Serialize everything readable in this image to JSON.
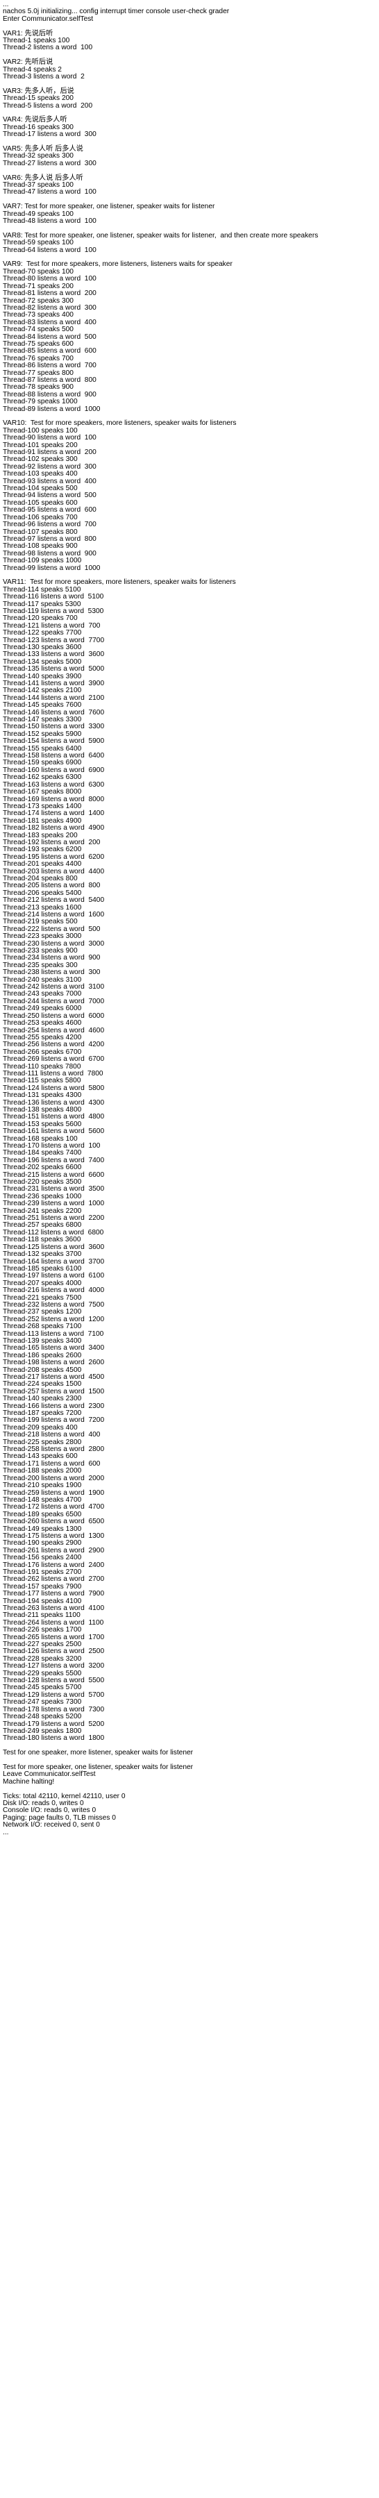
{
  "console": {
    "lines": [
      "...",
      "nachos 5.0j initializing... config interrupt timer console user-check grader",
      "Enter Communicator.selfTest",
      "",
      "VAR1: 先说后听",
      "Thread-1 speaks 100",
      "Thread-2 listens a word  100",
      "",
      "VAR2: 先听后说",
      "Thread-4 speaks 2",
      "Thread-3 listens a word  2",
      "",
      "VAR3: 先多人听，后说",
      "Thread-15 speaks 200",
      "Thread-5 listens a word  200",
      "",
      "VAR4: 先说后多人听",
      "Thread-16 speaks 300",
      "Thread-17 listens a word  300",
      "",
      "VAR5: 先多人听 后多人说",
      "Thread-32 speaks 300",
      "Thread-27 listens a word  300",
      "",
      "VAR6: 先多人说 后多人听",
      "Thread-37 speaks 100",
      "Thread-47 listens a word  100",
      "",
      "VAR7: Test for more speaker, one listener, speaker waits for listener",
      "Thread-49 speaks 100",
      "Thread-48 listens a word  100",
      "",
      "VAR8: Test for more speaker, one listener, speaker waits for listener,  and then create more speakers",
      "Thread-59 speaks 100",
      "Thread-64 listens a word  100",
      "",
      "VAR9:  Test for more speakers, more listeners, listeners waits for speaker",
      "Thread-70 speaks 100",
      "Thread-80 listens a word  100",
      "Thread-71 speaks 200",
      "Thread-81 listens a word  200",
      "Thread-72 speaks 300",
      "Thread-82 listens a word  300",
      "Thread-73 speaks 400",
      "Thread-83 listens a word  400",
      "Thread-74 speaks 500",
      "Thread-84 listens a word  500",
      "Thread-75 speaks 600",
      "Thread-85 listens a word  600",
      "Thread-76 speaks 700",
      "Thread-86 listens a word  700",
      "Thread-77 speaks 800",
      "Thread-87 listens a word  800",
      "Thread-78 speaks 900",
      "Thread-88 listens a word  900",
      "Thread-79 speaks 1000",
      "Thread-89 listens a word  1000",
      "",
      "VAR10:  Test for more speakers, more listeners, speaker waits for listeners",
      "Thread-100 speaks 100",
      "Thread-90 listens a word  100",
      "Thread-101 speaks 200",
      "Thread-91 listens a word  200",
      "Thread-102 speaks 300",
      "Thread-92 listens a word  300",
      "Thread-103 speaks 400",
      "Thread-93 listens a word  400",
      "Thread-104 speaks 500",
      "Thread-94 listens a word  500",
      "Thread-105 speaks 600",
      "Thread-95 listens a word  600",
      "Thread-106 speaks 700",
      "Thread-96 listens a word  700",
      "Thread-107 speaks 800",
      "Thread-97 listens a word  800",
      "Thread-108 speaks 900",
      "Thread-98 listens a word  900",
      "Thread-109 speaks 1000",
      "Thread-99 listens a word  1000",
      "",
      "VAR11:  Test for more speakers, more listeners, speaker waits for listeners",
      "Thread-114 speaks 5100",
      "Thread-116 listens a word  5100",
      "Thread-117 speaks 5300",
      "Thread-119 listens a word  5300",
      "Thread-120 speaks 700",
      "Thread-121 listens a word  700",
      "Thread-122 speaks 7700",
      "Thread-123 listens a word  7700",
      "Thread-130 speaks 3600",
      "Thread-133 listens a word  3600",
      "Thread-134 speaks 5000",
      "Thread-135 listens a word  5000",
      "Thread-140 speaks 3900",
      "Thread-141 listens a word  3900",
      "Thread-142 speaks 2100",
      "Thread-144 listens a word  2100",
      "Thread-145 speaks 7600",
      "Thread-146 listens a word  7600",
      "Thread-147 speaks 3300",
      "Thread-150 listens a word  3300",
      "Thread-152 speaks 5900",
      "Thread-154 listens a word  5900",
      "Thread-155 speaks 6400",
      "Thread-158 listens a word  6400",
      "Thread-159 speaks 6900",
      "Thread-160 listens a word  6900",
      "Thread-162 speaks 6300",
      "Thread-163 listens a word  6300",
      "Thread-167 speaks 8000",
      "Thread-169 listens a word  8000",
      "Thread-173 speaks 1400",
      "Thread-174 listens a word  1400",
      "Thread-181 speaks 4900",
      "Thread-182 listens a word  4900",
      "Thread-183 speaks 200",
      "Thread-192 listens a word  200",
      "Thread-193 speaks 6200",
      "Thread-195 listens a word  6200",
      "Thread-201 speaks 4400",
      "Thread-203 listens a word  4400",
      "Thread-204 speaks 800",
      "Thread-205 listens a word  800",
      "Thread-206 speaks 5400",
      "Thread-212 listens a word  5400",
      "Thread-213 speaks 1600",
      "Thread-214 listens a word  1600",
      "Thread-219 speaks 500",
      "Thread-222 listens a word  500",
      "Thread-223 speaks 3000",
      "Thread-230 listens a word  3000",
      "Thread-233 speaks 900",
      "Thread-234 listens a word  900",
      "Thread-235 speaks 300",
      "Thread-238 listens a word  300",
      "Thread-240 speaks 3100",
      "Thread-242 listens a word  3100",
      "Thread-243 speaks 7000",
      "Thread-244 listens a word  7000",
      "Thread-249 speaks 6000",
      "Thread-250 listens a word  6000",
      "Thread-253 speaks 4600",
      "Thread-254 listens a word  4600",
      "Thread-255 speaks 4200",
      "Thread-256 listens a word  4200",
      "Thread-266 speaks 6700",
      "Thread-269 listens a word  6700",
      "Thread-110 speaks 7800",
      "Thread-111 listens a word  7800",
      "Thread-115 speaks 5800",
      "Thread-124 listens a word  5800",
      "Thread-131 speaks 4300",
      "Thread-136 listens a word  4300",
      "Thread-138 speaks 4800",
      "Thread-151 listens a word  4800",
      "Thread-153 speaks 5600",
      "Thread-161 listens a word  5600",
      "Thread-168 speaks 100",
      "Thread-170 listens a word  100",
      "Thread-184 speaks 7400",
      "Thread-196 listens a word  7400",
      "Thread-202 speaks 6600",
      "Thread-215 listens a word  6600",
      "Thread-220 speaks 3500",
      "Thread-231 listens a word  3500",
      "Thread-236 speaks 1000",
      "Thread-239 listens a word  1000",
      "Thread-241 speaks 2200",
      "Thread-251 listens a word  2200",
      "Thread-257 speaks 6800",
      "Thread-112 listens a word  6800",
      "Thread-118 speaks 3600",
      "Thread-125 listens a word  3600",
      "Thread-132 speaks 3700",
      "Thread-164 listens a word  3700",
      "Thread-185 speaks 6100",
      "Thread-197 listens a word  6100",
      "Thread-207 speaks 4000",
      "Thread-216 listens a word  4000",
      "Thread-221 speaks 7500",
      "Thread-232 listens a word  7500",
      "Thread-237 speaks 1200",
      "Thread-252 listens a word  1200",
      "Thread-268 speaks 7100",
      "Thread-113 listens a word  7100",
      "Thread-139 speaks 3400",
      "Thread-165 listens a word  3400",
      "Thread-186 speaks 2600",
      "Thread-198 listens a word  2600",
      "Thread-208 speaks 4500",
      "Thread-217 listens a word  4500",
      "Thread-224 speaks 1500",
      "Thread-257 listens a word  1500",
      "Thread-140 speaks 2300",
      "Thread-166 listens a word  2300",
      "Thread-187 speaks 7200",
      "Thread-199 listens a word  7200",
      "Thread-209 speaks 400",
      "Thread-218 listens a word  400",
      "Thread-225 speaks 2800",
      "Thread-258 listens a word  2800",
      "Thread-143 speaks 600",
      "Thread-171 listens a word  600",
      "Thread-188 speaks 2000",
      "Thread-200 listens a word  2000",
      "Thread-210 speaks 1900",
      "Thread-259 listens a word  1900",
      "Thread-148 speaks 4700",
      "Thread-172 listens a word  4700",
      "Thread-189 speaks 6500",
      "Thread-260 listens a word  6500",
      "Thread-149 speaks 1300",
      "Thread-175 listens a word  1300",
      "Thread-190 speaks 2900",
      "Thread-261 listens a word  2900",
      "Thread-156 speaks 2400",
      "Thread-176 listens a word  2400",
      "Thread-191 speaks 2700",
      "Thread-262 listens a word  2700",
      "Thread-157 speaks 7900",
      "Thread-177 listens a word  7900",
      "Thread-194 speaks 4100",
      "Thread-263 listens a word  4100",
      "Thread-211 speaks 1100",
      "Thread-264 listens a word  1100",
      "Thread-226 speaks 1700",
      "Thread-265 listens a word  1700",
      "Thread-227 speaks 2500",
      "Thread-126 listens a word  2500",
      "Thread-228 speaks 3200",
      "Thread-127 listens a word  3200",
      "Thread-229 speaks 5500",
      "Thread-128 listens a word  5500",
      "Thread-245 speaks 5700",
      "Thread-129 listens a word  5700",
      "Thread-247 speaks 7300",
      "Thread-178 listens a word  7300",
      "Thread-248 speaks 5200",
      "Thread-179 listens a word  5200",
      "Thread-249 speaks 1800",
      "Thread-180 listens a word  1800",
      "",
      "Test for one speaker, more listener, speaker waits for listener",
      "",
      "Test for more speaker, one listener, speaker waits for listener",
      "Leave Communicator.selfTest",
      "Machine halting!",
      "",
      "Ticks: total 42110, kernel 42110, user 0",
      "Disk I/O: reads 0, writes 0",
      "Console I/O: reads 0, writes 0",
      "Paging: page faults 0, TLB misses 0",
      "Network I/O: received 0, sent 0",
      "..."
    ]
  }
}
